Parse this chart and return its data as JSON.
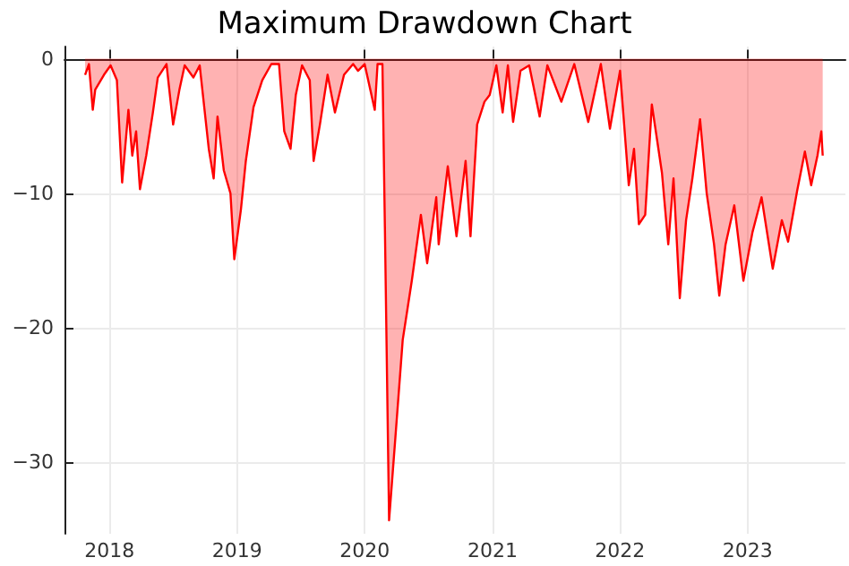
{
  "chart_data": {
    "type": "area",
    "title": "Maximum Drawdown Chart",
    "x": [
      "2017-10-23",
      "2017-11-03",
      "2017-11-14",
      "2017-11-21",
      "2017-12-16",
      "2018-01-04",
      "2018-01-22",
      "2018-02-06",
      "2018-02-24",
      "2018-03-07",
      "2018-03-18",
      "2018-03-29",
      "2018-04-16",
      "2018-05-05",
      "2018-05-19",
      "2018-06-13",
      "2018-07-02",
      "2018-07-20",
      "2018-08-04",
      "2018-08-29",
      "2018-09-16",
      "2018-10-12",
      "2018-10-26",
      "2018-11-06",
      "2018-11-24",
      "2018-12-13",
      "2018-12-24",
      "2019-01-12",
      "2019-01-26",
      "2019-02-17",
      "2019-03-14",
      "2019-04-09",
      "2019-05-01",
      "2019-05-16",
      "2019-06-03",
      "2019-06-18",
      "2019-07-06",
      "2019-07-28",
      "2019-08-08",
      "2019-08-26",
      "2019-09-17",
      "2019-10-08",
      "2019-11-03",
      "2019-11-29",
      "2019-12-13",
      "2020-01-01",
      "2020-01-30",
      "2020-02-07",
      "2020-02-21",
      "2020-02-28",
      "2020-03-11",
      "2020-03-28",
      "2020-04-19",
      "2020-05-15",
      "2020-06-10",
      "2020-06-28",
      "2020-07-24",
      "2020-07-31",
      "2020-08-26",
      "2020-09-20",
      "2020-10-16",
      "2020-10-30",
      "2020-11-18",
      "2020-12-09",
      "2020-12-24",
      "2021-01-12",
      "2021-01-30",
      "2021-02-14",
      "2021-03-01",
      "2021-03-22",
      "2021-04-16",
      "2021-05-16",
      "2021-06-07",
      "2021-07-17",
      "2021-08-23",
      "2021-10-02",
      "2021-11-07",
      "2021-12-03",
      "2022-01-01",
      "2022-01-26",
      "2022-02-10",
      "2022-02-24",
      "2022-03-14",
      "2022-04-02",
      "2022-05-01",
      "2022-05-19",
      "2022-06-03",
      "2022-06-21",
      "2022-07-09",
      "2022-07-27",
      "2022-08-18",
      "2022-09-06",
      "2022-09-27",
      "2022-10-12",
      "2022-10-30",
      "2022-11-24",
      "2022-12-20",
      "2023-01-15",
      "2023-02-10",
      "2023-03-14",
      "2023-04-09",
      "2023-04-27",
      "2023-05-23",
      "2023-06-14",
      "2023-07-02",
      "2023-07-20",
      "2023-07-31",
      "2023-08-04"
    ],
    "series": [
      {
        "color": "#ff0000",
        "values": [
          -1.2,
          -0.4,
          -3.8,
          -2.3,
          -1.2,
          -0.5,
          -1.6,
          -9.2,
          -3.8,
          -7.2,
          -5.4,
          -9.7,
          -7.2,
          -4.0,
          -1.4,
          -0.4,
          -4.9,
          -2.3,
          -0.5,
          -1.4,
          -0.5,
          -6.7,
          -8.9,
          -4.3,
          -8.3,
          -10.0,
          -14.9,
          -11.2,
          -7.6,
          -3.6,
          -1.6,
          -0.4,
          -0.4,
          -5.4,
          -6.7,
          -2.7,
          -0.5,
          -1.6,
          -7.6,
          -4.9,
          -1.2,
          -4.0,
          -1.2,
          -0.4,
          -0.9,
          -0.4,
          -3.8,
          -0.4,
          -0.4,
          -12.5,
          -34.3,
          -28.5,
          -20.9,
          -16.5,
          -11.6,
          -15.2,
          -10.3,
          -13.8,
          -8.0,
          -13.2,
          -7.6,
          -13.2,
          -4.9,
          -3.2,
          -2.7,
          -0.5,
          -4.0,
          -0.5,
          -4.7,
          -0.9,
          -0.5,
          -4.3,
          -0.5,
          -3.2,
          -0.4,
          -4.7,
          -0.4,
          -5.2,
          -0.9,
          -9.4,
          -6.7,
          -12.3,
          -11.6,
          -3.4,
          -8.5,
          -13.8,
          -8.9,
          -17.8,
          -12.0,
          -8.9,
          -4.5,
          -10.0,
          -13.8,
          -17.6,
          -13.8,
          -10.9,
          -16.5,
          -12.9,
          -10.3,
          -15.6,
          -12.0,
          -13.6,
          -9.8,
          -6.9,
          -9.4,
          -7.2,
          -5.4,
          -7.2
        ]
      }
    ],
    "xlim": [
      "2017-08-25",
      "2023-10-08"
    ],
    "xticks": [
      "2018",
      "2019",
      "2020",
      "2021",
      "2022",
      "2023"
    ],
    "ylim": [
      -35.3,
      0.9
    ],
    "yticks": [
      -30,
      -20,
      -10,
      0
    ],
    "grid": true
  }
}
